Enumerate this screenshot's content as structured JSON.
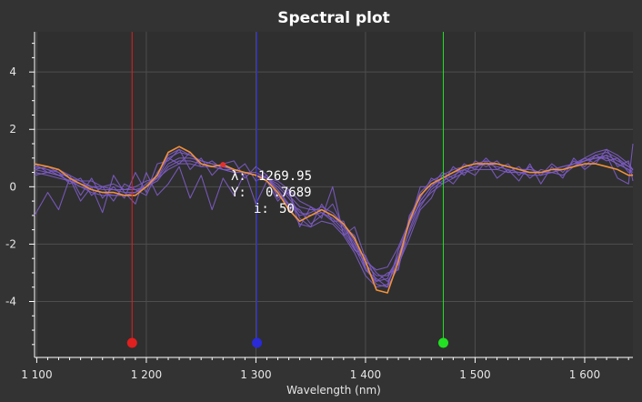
{
  "window": {
    "background": "#333333",
    "plot_background": "#2f2f2f",
    "grid_color": "#4e4e4e",
    "axis_color": "#ffffff"
  },
  "readout": {
    "lambda_label": "λ:",
    "lambda_value": "1269.95",
    "y_label": "Y:",
    "y_value": "0.7689",
    "i_label": "i:",
    "i_value": "50",
    "marker_color": "#e53030"
  },
  "chart_data": {
    "type": "line",
    "title": "Spectral plot",
    "xlabel": "Wavelength (nm)",
    "ylabel": "",
    "xlim": [
      1098,
      1644
    ],
    "ylim": [
      -5.95,
      5.4
    ],
    "x_ticks": [
      1100,
      1200,
      1300,
      1400,
      1500,
      1600
    ],
    "x_tick_labels": [
      "1 100",
      "1 200",
      "1 300",
      "1 400",
      "1 500",
      "1 600"
    ],
    "y_ticks": [
      -4,
      -2,
      0,
      2,
      4
    ],
    "y_tick_labels": [
      "-4",
      "-2",
      "0",
      "2",
      "4"
    ],
    "grid": true,
    "cursors": [
      {
        "x": 1187,
        "color": "#e01f1f"
      },
      {
        "x": 1301,
        "color": "#2a2ad8"
      },
      {
        "x": 1471,
        "color": "#22e022"
      }
    ],
    "x": [
      1098,
      1110,
      1120,
      1130,
      1140,
      1150,
      1160,
      1170,
      1180,
      1190,
      1200,
      1210,
      1220,
      1230,
      1240,
      1250,
      1260,
      1270,
      1280,
      1290,
      1300,
      1310,
      1320,
      1330,
      1340,
      1350,
      1360,
      1370,
      1380,
      1390,
      1400,
      1410,
      1420,
      1430,
      1440,
      1450,
      1460,
      1470,
      1480,
      1490,
      1500,
      1510,
      1520,
      1530,
      1540,
      1550,
      1560,
      1570,
      1580,
      1590,
      1600,
      1610,
      1620,
      1630,
      1640,
      1644
    ],
    "series": [
      {
        "color": "#f0923a",
        "values": [
          0.8,
          0.7,
          0.6,
          0.3,
          0.1,
          -0.1,
          -0.2,
          -0.2,
          -0.3,
          -0.3,
          0.0,
          0.4,
          1.2,
          1.4,
          1.2,
          0.8,
          0.7,
          0.77,
          0.6,
          0.5,
          0.4,
          0.2,
          -0.2,
          -0.8,
          -1.2,
          -1.0,
          -0.8,
          -1.0,
          -1.3,
          -1.8,
          -2.6,
          -3.6,
          -3.7,
          -2.6,
          -1.2,
          -0.3,
          0.1,
          0.3,
          0.5,
          0.7,
          0.8,
          0.8,
          0.8,
          0.7,
          0.6,
          0.5,
          0.5,
          0.6,
          0.6,
          0.7,
          0.8,
          0.8,
          0.7,
          0.6,
          0.4,
          0.4
        ]
      },
      {
        "color": "#7d5cc4",
        "values": [
          0.7,
          0.6,
          0.5,
          0.3,
          0.2,
          0.0,
          -0.1,
          -0.1,
          -0.2,
          -0.2,
          0.0,
          0.3,
          1.0,
          1.2,
          1.1,
          0.9,
          0.8,
          0.7,
          0.6,
          0.5,
          0.4,
          0.2,
          -0.1,
          -0.6,
          -1.0,
          -0.9,
          -0.7,
          -0.9,
          -1.3,
          -1.9,
          -2.8,
          -3.4,
          -3.5,
          -2.8,
          -1.5,
          -0.5,
          0.0,
          0.3,
          0.5,
          0.7,
          0.8,
          0.9,
          0.8,
          0.7,
          0.6,
          0.6,
          0.5,
          0.6,
          0.7,
          0.8,
          0.9,
          1.0,
          1.0,
          0.8,
          0.6,
          0.5
        ]
      },
      {
        "color": "#7d5cc4",
        "values": [
          0.6,
          0.5,
          0.4,
          0.2,
          0.0,
          -0.1,
          -0.2,
          -0.3,
          -0.3,
          -0.2,
          0.0,
          0.3,
          0.8,
          1.0,
          1.0,
          0.9,
          0.8,
          0.7,
          0.6,
          0.5,
          0.4,
          0.3,
          0.0,
          -0.4,
          -0.9,
          -1.0,
          -0.9,
          -1.1,
          -1.5,
          -2.1,
          -2.9,
          -3.3,
          -3.2,
          -2.4,
          -1.3,
          -0.5,
          0.0,
          0.3,
          0.5,
          0.6,
          0.7,
          0.8,
          0.8,
          0.7,
          0.6,
          0.6,
          0.5,
          0.5,
          0.6,
          0.7,
          0.9,
          1.1,
          1.2,
          1.0,
          0.7,
          0.6
        ]
      },
      {
        "color": "#7d5cc4",
        "values": [
          0.5,
          0.4,
          0.3,
          0.2,
          0.1,
          0.0,
          0.0,
          -0.1,
          -0.1,
          -0.1,
          0.0,
          0.2,
          0.7,
          0.9,
          0.9,
          0.8,
          0.7,
          0.6,
          0.6,
          0.5,
          0.4,
          0.3,
          0.1,
          -0.3,
          -0.7,
          -0.8,
          -0.8,
          -1.0,
          -1.4,
          -2.0,
          -2.7,
          -3.1,
          -3.1,
          -2.5,
          -1.6,
          -0.7,
          -0.1,
          0.2,
          0.4,
          0.6,
          0.7,
          0.8,
          0.7,
          0.6,
          0.5,
          0.5,
          0.5,
          0.5,
          0.6,
          0.8,
          1.0,
          1.2,
          1.3,
          1.1,
          0.8,
          0.6
        ]
      },
      {
        "color": "#7d5cc4",
        "values": [
          0.7,
          0.6,
          0.4,
          0.2,
          0.0,
          -0.2,
          -0.3,
          -0.3,
          -0.3,
          -0.2,
          0.1,
          0.4,
          1.1,
          1.3,
          1.1,
          0.9,
          0.8,
          0.7,
          0.6,
          0.5,
          0.5,
          0.3,
          -0.1,
          -0.7,
          -1.3,
          -1.4,
          -1.2,
          -1.3,
          -1.7,
          -2.3,
          -3.1,
          -3.5,
          -3.4,
          -2.5,
          -1.1,
          -0.2,
          0.2,
          0.4,
          0.6,
          0.7,
          0.8,
          0.8,
          0.8,
          0.7,
          0.6,
          0.5,
          0.5,
          0.6,
          0.7,
          0.8,
          0.9,
          1.0,
          1.0,
          0.8,
          0.6,
          0.4
        ]
      },
      {
        "color": "#7d5cc4",
        "values": [
          0.8,
          0.5,
          0.4,
          0.4,
          -0.3,
          0.3,
          -0.4,
          0.0,
          -0.4,
          0.5,
          -0.2,
          0.8,
          0.9,
          1.3,
          0.6,
          1.0,
          0.4,
          0.8,
          0.9,
          0.3,
          0.7,
          0.4,
          -0.3,
          -0.6,
          -0.8,
          -1.3,
          -1.0,
          -0.6,
          -1.4,
          -1.7,
          -2.9,
          -3.2,
          -3.5,
          -2.2,
          -1.3,
          0.0,
          0.0,
          0.5,
          0.3,
          0.8,
          0.6,
          1.0,
          0.6,
          0.8,
          0.4,
          0.7,
          0.4,
          0.8,
          0.5,
          0.9,
          0.7,
          1.1,
          0.9,
          1.0,
          0.5,
          0.6
        ]
      },
      {
        "color": "#7d5cc4",
        "values": [
          -1.0,
          -0.2,
          -0.8,
          0.3,
          -0.5,
          0.0,
          -0.9,
          0.4,
          -0.2,
          -0.6,
          0.5,
          -0.3,
          0.1,
          0.7,
          -0.4,
          0.4,
          -0.8,
          0.3,
          -0.3,
          0.5,
          -0.6,
          0.2,
          -0.5,
          -0.1,
          -1.4,
          -0.7,
          -1.1,
          0.0,
          -1.7,
          -1.4,
          -2.5,
          -3.0,
          -3.3,
          -2.7,
          -1.8,
          -0.8,
          -0.4,
          0.4,
          0.1,
          0.6,
          0.4,
          0.9,
          0.3,
          0.6,
          0.2,
          0.8,
          0.1,
          0.7,
          0.3,
          1.0,
          0.6,
          0.9,
          1.1,
          0.3,
          0.1,
          1.5
        ]
      },
      {
        "color": "#7d5cc4",
        "values": [
          0.6,
          0.7,
          0.5,
          0.1,
          0.3,
          -0.3,
          0.0,
          -0.5,
          0.1,
          -0.1,
          -0.3,
          0.5,
          1.0,
          0.8,
          1.2,
          0.7,
          0.9,
          0.6,
          0.5,
          0.8,
          0.2,
          0.4,
          -0.4,
          -0.2,
          -1.1,
          -1.4,
          -0.6,
          -1.2,
          -1.2,
          -2.2,
          -2.4,
          -3.3,
          -3.0,
          -2.9,
          -1.0,
          -0.4,
          0.3,
          0.1,
          0.7,
          0.4,
          0.9,
          0.7,
          0.9,
          0.5,
          0.7,
          0.3,
          0.6,
          0.5,
          0.4,
          0.7,
          1.0,
          0.8,
          1.3,
          0.7,
          0.9,
          0.2
        ]
      },
      {
        "color": "#7d5cc4",
        "values": [
          0.4,
          0.5,
          0.6,
          0.4,
          0.2,
          0.2,
          0.0,
          0.1,
          -0.1,
          0.0,
          0.2,
          0.3,
          0.6,
          0.8,
          0.8,
          0.7,
          0.7,
          0.6,
          0.5,
          0.5,
          0.4,
          0.3,
          0.2,
          -0.1,
          -0.5,
          -0.7,
          -0.9,
          -1.2,
          -1.6,
          -2.2,
          -2.6,
          -2.9,
          -2.8,
          -2.1,
          -1.2,
          -0.6,
          -0.2,
          0.1,
          0.3,
          0.5,
          0.6,
          0.6,
          0.6,
          0.5,
          0.5,
          0.4,
          0.4,
          0.5,
          0.6,
          0.7,
          0.9,
          1.0,
          1.1,
          0.9,
          0.7,
          0.6
        ]
      }
    ]
  }
}
